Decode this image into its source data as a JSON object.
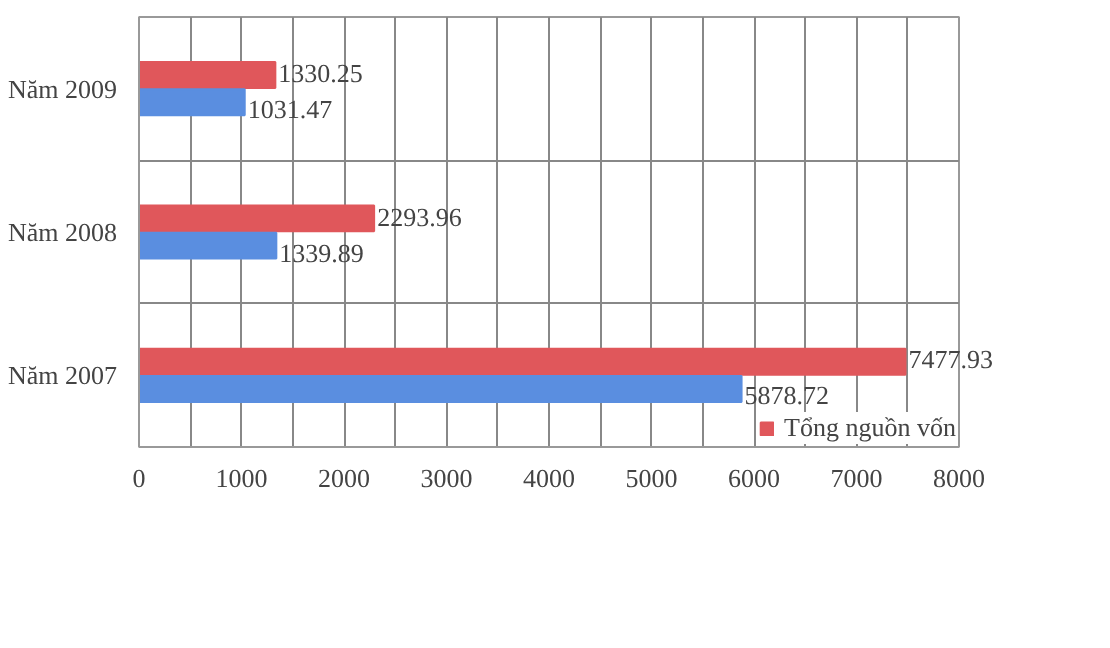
{
  "chart_data": {
    "type": "bar",
    "orientation": "horizontal",
    "categories": [
      "Năm 2009",
      "Năm 2008",
      "Năm 2007"
    ],
    "series": [
      {
        "name": "Tổng nguồn vốn",
        "color": "#e0575b",
        "values": [
          1330.25,
          2293.96,
          7477.93
        ]
      },
      {
        "color": "#5a8ee0",
        "values": [
          1031.47,
          1339.89,
          5878.72
        ]
      }
    ],
    "xlim": [
      0,
      8000
    ],
    "xticks": [
      0,
      {
        "value": 500,
        "label": null
      },
      1000,
      {
        "value": 1500,
        "label": null
      },
      2000,
      {
        "value": 2500,
        "label": null
      },
      3000,
      {
        "value": 3500,
        "label": null
      },
      4000,
      {
        "value": 4500,
        "label": null
      },
      5000,
      {
        "value": 5500,
        "label": null
      },
      6000,
      {
        "value": 6500,
        "label": null
      },
      7000,
      {
        "value": 7500,
        "label": null
      },
      8000
    ],
    "data_labels": true,
    "grid": true,
    "legend": "bottom right"
  }
}
